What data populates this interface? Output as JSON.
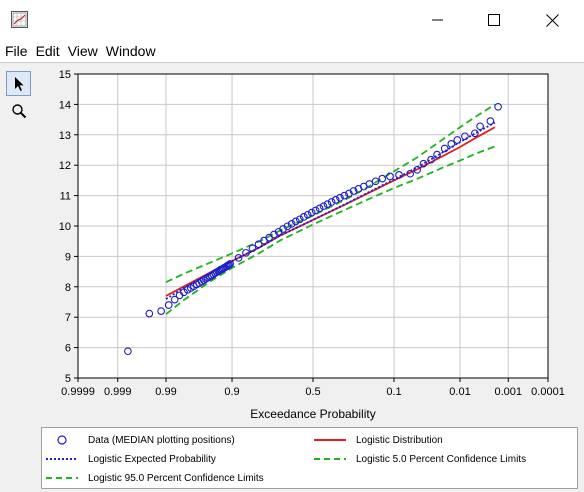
{
  "window": {
    "icon": "chart-window-icon",
    "controls": [
      "minimize-icon",
      "maximize-icon",
      "close-icon"
    ]
  },
  "menu": {
    "items": [
      "File",
      "Edit",
      "View",
      "Window"
    ]
  },
  "toolbar": {
    "tools": [
      "arrow-pointer-icon",
      "zoom-magnifier-icon"
    ],
    "active_tool": "arrow-pointer-icon"
  },
  "chart_data": {
    "type": "scatter",
    "title": "",
    "xlabel": "Exceedance Probability",
    "ylabel": "",
    "x_scale": "normal-probability",
    "x_reversed": true,
    "xlim": [
      0.9999,
      0.0001
    ],
    "ylim": [
      5,
      15
    ],
    "grid": true,
    "x_ticks": [
      0.9999,
      0.999,
      0.99,
      0.9,
      0.5,
      0.1,
      0.01,
      0.001,
      0.0001
    ],
    "x_tick_labels": [
      "0.9999",
      "0.999",
      "0.99",
      "0.9",
      "0.5",
      "0.1",
      "0.01",
      "0.001",
      "0.0001"
    ],
    "y_ticks": [
      5,
      6,
      7,
      8,
      9,
      10,
      11,
      12,
      13,
      14,
      15
    ],
    "y_tick_labels": [
      "5",
      "6",
      "7",
      "8",
      "9",
      "10",
      "11",
      "12",
      "13",
      "14",
      "15"
    ],
    "legend_placement": "bottom",
    "series": [
      {
        "name": "Data (MEDIAN plotting positions)",
        "kind": "markers",
        "color": "#1e1ec8",
        "x": [
          0.9983,
          0.9952,
          0.9919,
          0.9888,
          0.9857,
          0.9826,
          0.9795,
          0.9764,
          0.9734,
          0.9704,
          0.9672,
          0.9642,
          0.9611,
          0.958,
          0.9549,
          0.9518,
          0.9486,
          0.9456,
          0.9424,
          0.9393,
          0.9362,
          0.9331,
          0.93,
          0.927,
          0.9238,
          0.9207,
          0.9176,
          0.9145,
          0.9114,
          0.9084,
          0.9052,
          0.8804,
          0.8556,
          0.8307,
          0.806,
          0.7811,
          0.7563,
          0.7315,
          0.7067,
          0.6819,
          0.6571,
          0.6323,
          0.6075,
          0.5827,
          0.558,
          0.5332,
          0.5083,
          0.4835,
          0.4587,
          0.4339,
          0.4091,
          0.3843,
          0.3595,
          0.3347,
          0.3099,
          0.2851,
          0.2603,
          0.2355,
          0.2107,
          0.1859,
          0.1611,
          0.1363,
          0.1115,
          0.0867,
          0.0619,
          0.0495,
          0.0402,
          0.0309,
          0.0248,
          0.0186,
          0.0143,
          0.0112,
          0.0081,
          0.0052,
          0.0041,
          0.0025,
          0.0017
        ],
        "y": [
          5.88,
          7.12,
          7.2,
          7.4,
          7.58,
          7.72,
          7.82,
          7.9,
          7.96,
          8.02,
          8.08,
          8.12,
          8.17,
          8.22,
          8.26,
          8.3,
          8.34,
          8.37,
          8.41,
          8.45,
          8.48,
          8.51,
          8.54,
          8.57,
          8.59,
          8.62,
          8.64,
          8.67,
          8.7,
          8.72,
          8.75,
          8.95,
          9.12,
          9.27,
          9.4,
          9.52,
          9.62,
          9.72,
          9.81,
          9.9,
          9.99,
          10.07,
          10.15,
          10.22,
          10.3,
          10.37,
          10.44,
          10.51,
          10.58,
          10.65,
          10.72,
          10.79,
          10.86,
          10.93,
          11.0,
          11.07,
          11.15,
          11.22,
          11.3,
          11.38,
          11.47,
          11.56,
          11.63,
          11.68,
          11.72,
          11.85,
          12.05,
          12.18,
          12.35,
          12.55,
          12.7,
          12.83,
          12.95,
          13.05,
          13.28,
          13.45,
          13.92
        ]
      },
      {
        "name": "Logistic Distribution",
        "kind": "line",
        "style": "solid",
        "color": "#e02020",
        "x": [
          0.99,
          0.98,
          0.95,
          0.9,
          0.8,
          0.7,
          0.5,
          0.3,
          0.2,
          0.1,
          0.05,
          0.02,
          0.01,
          0.005,
          0.002
        ],
        "y": [
          7.7,
          8.0,
          8.45,
          8.85,
          9.3,
          9.68,
          10.2,
          10.72,
          11.05,
          11.5,
          11.86,
          12.3,
          12.6,
          12.9,
          13.25
        ]
      },
      {
        "name": "Logistic Expected Probability",
        "kind": "line",
        "style": "dotted",
        "color": "#1e1ec8",
        "x": [
          0.99,
          0.98,
          0.95,
          0.9,
          0.8,
          0.7,
          0.5,
          0.3,
          0.2,
          0.1,
          0.05,
          0.02,
          0.01,
          0.005,
          0.002
        ],
        "y": [
          7.6,
          7.95,
          8.43,
          8.84,
          9.3,
          9.68,
          10.2,
          10.73,
          11.07,
          11.53,
          11.92,
          12.42,
          12.76,
          13.06,
          13.4
        ]
      },
      {
        "name": "Logistic 5.0 Percent Confidence Limits",
        "kind": "line",
        "style": "dashed",
        "color": "#1eb41e",
        "x": [
          0.99,
          0.98,
          0.95,
          0.9,
          0.8,
          0.7,
          0.5,
          0.3,
          0.2,
          0.1,
          0.05,
          0.02,
          0.01,
          0.005,
          0.002
        ],
        "y": [
          7.1,
          7.55,
          8.15,
          8.62,
          9.12,
          9.52,
          10.05,
          10.55,
          10.85,
          11.25,
          11.55,
          11.92,
          12.15,
          12.38,
          12.62
        ]
      },
      {
        "name": "Logistic 95.0 Percent Confidence Limits",
        "kind": "line",
        "style": "dashed",
        "color": "#1eb41e",
        "x": [
          0.99,
          0.98,
          0.95,
          0.9,
          0.8,
          0.7,
          0.5,
          0.3,
          0.2,
          0.1,
          0.05,
          0.02,
          0.01,
          0.005,
          0.002
        ],
        "y": [
          8.15,
          8.42,
          8.78,
          9.1,
          9.5,
          9.85,
          10.35,
          10.88,
          11.25,
          11.8,
          12.25,
          12.85,
          13.25,
          13.6,
          14.0
        ]
      }
    ]
  }
}
